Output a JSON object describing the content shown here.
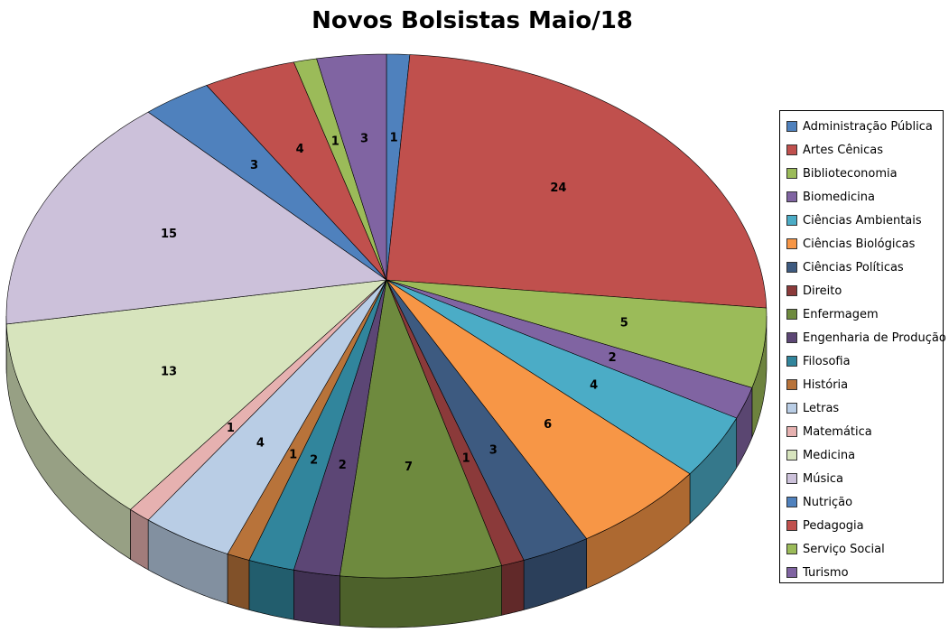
{
  "chart_data": {
    "type": "pie",
    "title": "Novos Bolsistas Maio/18",
    "style": "3d",
    "legend_position": "right",
    "categories": [
      "Administração Pública",
      "Artes Cênicas",
      "Biblioteconomia",
      "Biomedicina",
      "Ciências Ambientais",
      "Ciências Biológicas",
      "Ciências Políticas",
      "Direito",
      "Enfermagem",
      "Engenharia de Produção",
      "Filosofia",
      "História",
      "Letras",
      "Matemática",
      "Medicina",
      "Música",
      "Nutrição",
      "Pedagogia",
      "Serviço Social",
      "Turismo"
    ],
    "values": [
      1,
      24,
      5,
      2,
      4,
      6,
      3,
      1,
      7,
      2,
      2,
      1,
      4,
      1,
      13,
      15,
      3,
      4,
      1,
      3
    ],
    "colors": [
      "#4f81bd",
      "#c0504d",
      "#9bbb59",
      "#8064a2",
      "#4bacc6",
      "#f79646",
      "#3d5a80",
      "#8b3a3a",
      "#6e8a3e",
      "#5c4675",
      "#31859c",
      "#b8733a",
      "#b9cde5",
      "#e6b1b0",
      "#d7e4bd",
      "#ccc1da",
      "#4f81bd",
      "#c0504d",
      "#9bbb59",
      "#8064a2"
    ]
  }
}
